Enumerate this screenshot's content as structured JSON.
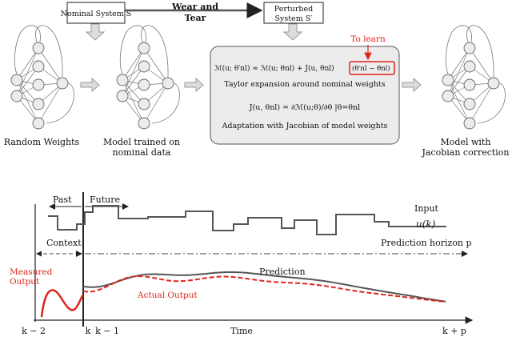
{
  "top": {
    "nominal_box": "Nominal System S",
    "perturbed_box_line1": "Perturbed",
    "perturbed_box_line2": "System S′",
    "wear_tear_line1": "Wear and",
    "wear_tear_line2": "Tear",
    "to_learn": "To learn",
    "eq1_left": "ℳ(u; θ′nl) ≈ ℳ(u; θnl) + J(u, θnl)",
    "eq1_box": "(θ′nl − θnl)",
    "taylor_text": "Taylor expansion around nominal weights",
    "eq2": "J(u, θnl) = ∂ℳ(u;θ)/∂θ |θ=θnl",
    "adaptation_text": "Adaptation with Jacobian of model weights",
    "random_weights": "Random Weights",
    "trained_line1": "Model trained on",
    "trained_line2": "nominal data",
    "jacobian_line1": "Model with",
    "jacobian_line2": "Jacobian correction"
  },
  "bottom": {
    "past": "Past",
    "future": "Future",
    "input_label": "Input",
    "input_symbol": "u(k)",
    "context": "Context",
    "prediction_horizon": "Prediction horizon p",
    "prediction": "Prediction",
    "measured_line1": "Measured",
    "measured_line2": "Output",
    "actual_output": "Actual Output",
    "tick_k2": "k − 2",
    "tick_k": "k",
    "tick_k1": "k − 1",
    "tick_kp": "k + p",
    "time": "Time"
  },
  "colors": {
    "accent_red": "#e0231c",
    "box_fill": "#ececec",
    "line_gray": "#555555"
  }
}
